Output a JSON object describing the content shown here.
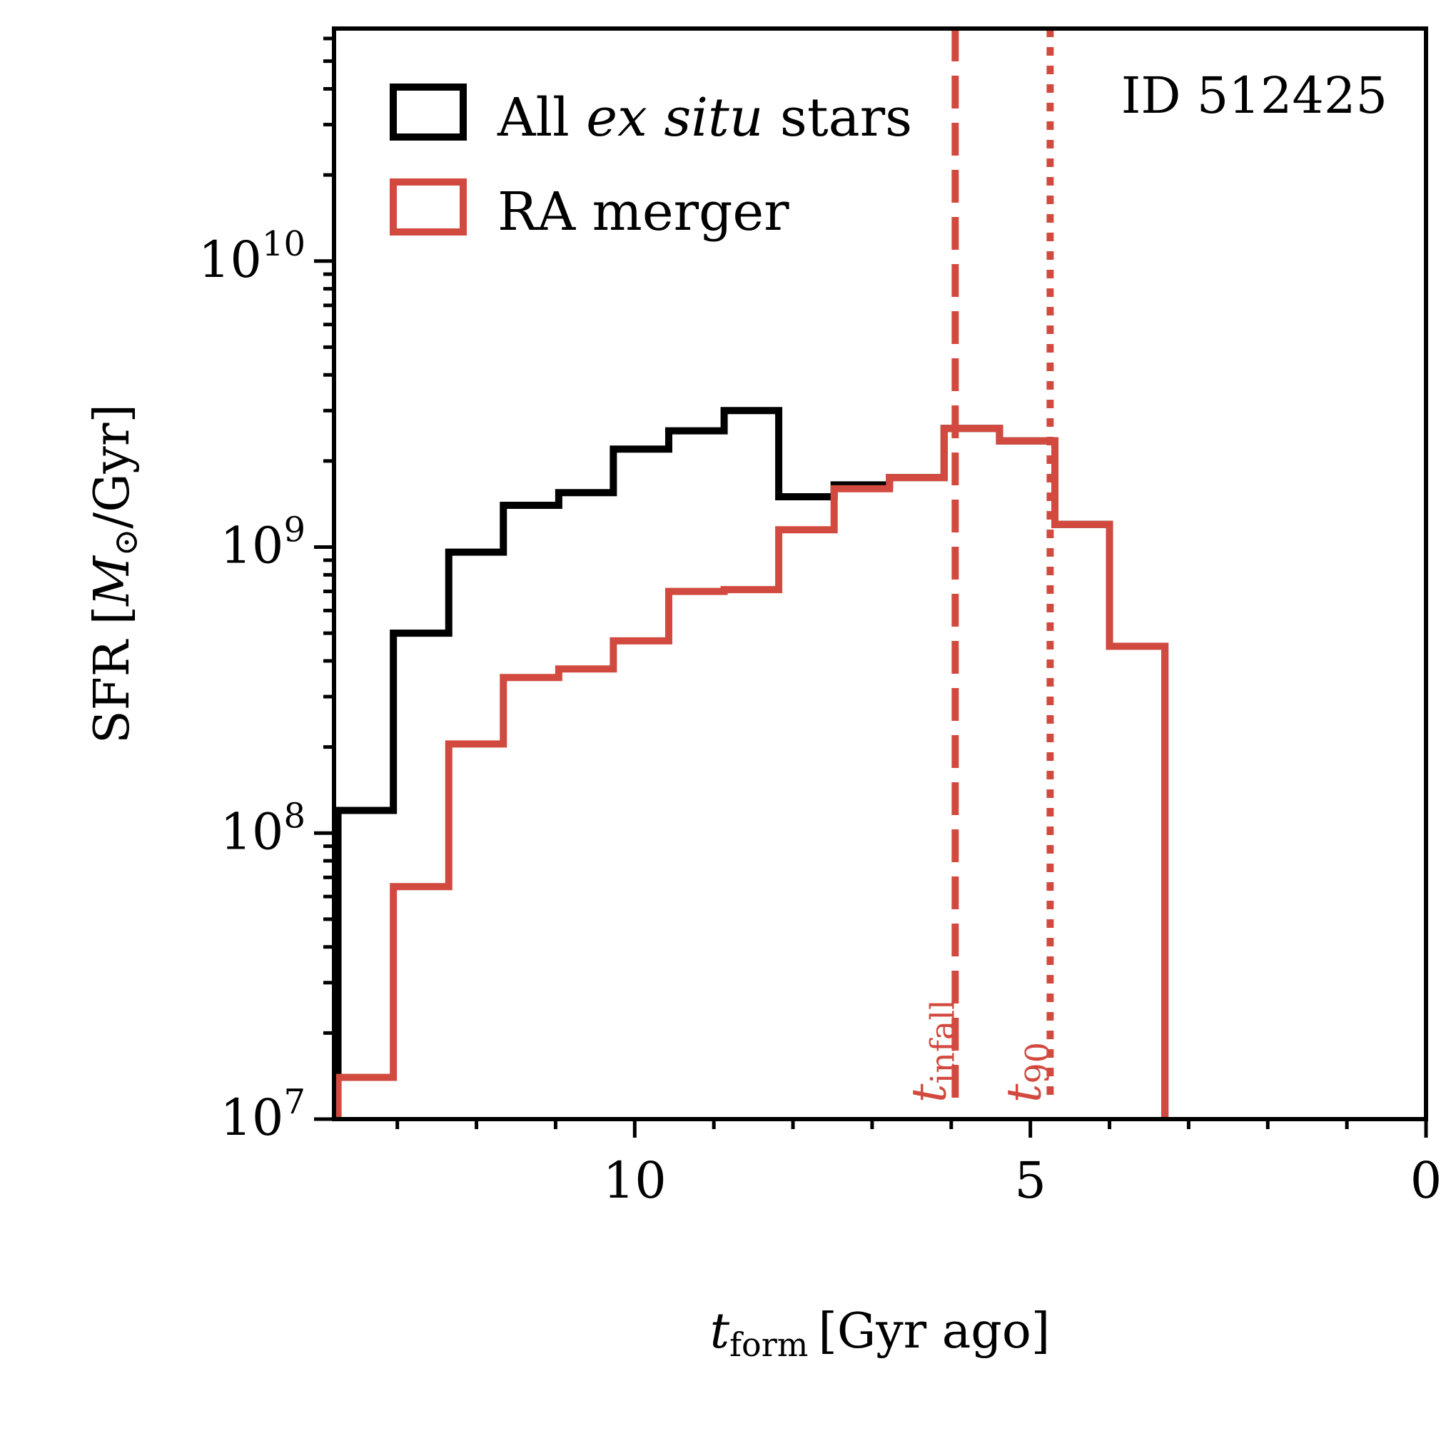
{
  "chart_data": {
    "type": "step-histogram",
    "title": "",
    "annotation": "ID 512425",
    "xlabel": {
      "symbol": "t",
      "subscript": "form",
      "unit": "[Gyr ago]"
    },
    "ylabel": {
      "prefix": "SFR [",
      "symbol": "M",
      "subscript": "⊙",
      "suffix": "/Gyr]"
    },
    "x_reversed": true,
    "xlim": [
      13.8,
      0
    ],
    "ylim": [
      10000000.0,
      65000000000.0
    ],
    "yscale": "log",
    "x_ticks": [
      {
        "value": 10,
        "label": "10"
      },
      {
        "value": 5,
        "label": "5"
      },
      {
        "value": 0,
        "label": "0"
      }
    ],
    "y_ticks": [
      {
        "value": 10000000.0,
        "base": "10",
        "exp": "7"
      },
      {
        "value": 100000000.0,
        "base": "10",
        "exp": "8"
      },
      {
        "value": 1000000000.0,
        "base": "10",
        "exp": "9"
      },
      {
        "value": 10000000000.0,
        "base": "10",
        "exp": "10"
      }
    ],
    "bin_edges": [
      13.75,
      13.05,
      12.35,
      11.66,
      10.96,
      10.27,
      9.57,
      8.87,
      8.18,
      7.48,
      6.78,
      6.09,
      5.39,
      4.69,
      4.0,
      3.3
    ],
    "series": [
      {
        "name": "All ex situ stars",
        "legend": {
          "prefix": "All ",
          "italic": "ex situ",
          "suffix": " stars"
        },
        "color": "#000000",
        "values": [
          120000000.0,
          500000000.0,
          960000000.0,
          1400000000.0,
          1550000000.0,
          2200000000.0,
          2550000000.0,
          3000000000.0,
          1500000000.0,
          1650000000.0,
          1750000000.0,
          2600000000.0,
          2350000000.0,
          1200000000.0,
          450000000.0
        ]
      },
      {
        "name": "RA merger",
        "legend": {
          "prefix": "RA merger",
          "italic": "",
          "suffix": ""
        },
        "color": "#d24a3f",
        "values": [
          14000000.0,
          65000000.0,
          205000000.0,
          350000000.0,
          375000000.0,
          470000000.0,
          700000000.0,
          710000000.0,
          1150000000.0,
          1600000000.0,
          1750000000.0,
          2600000000.0,
          2350000000.0,
          1200000000.0,
          450000000.0
        ]
      }
    ],
    "vlines": [
      {
        "name": "t_infall",
        "x": 5.95,
        "style": "dashed",
        "color": "#d24a3f",
        "label_symbol": "t",
        "label_sub": "infall"
      },
      {
        "name": "t_90",
        "x": 4.75,
        "style": "dotted",
        "color": "#d24a3f",
        "label_symbol": "t",
        "label_sub": "90"
      }
    ]
  }
}
